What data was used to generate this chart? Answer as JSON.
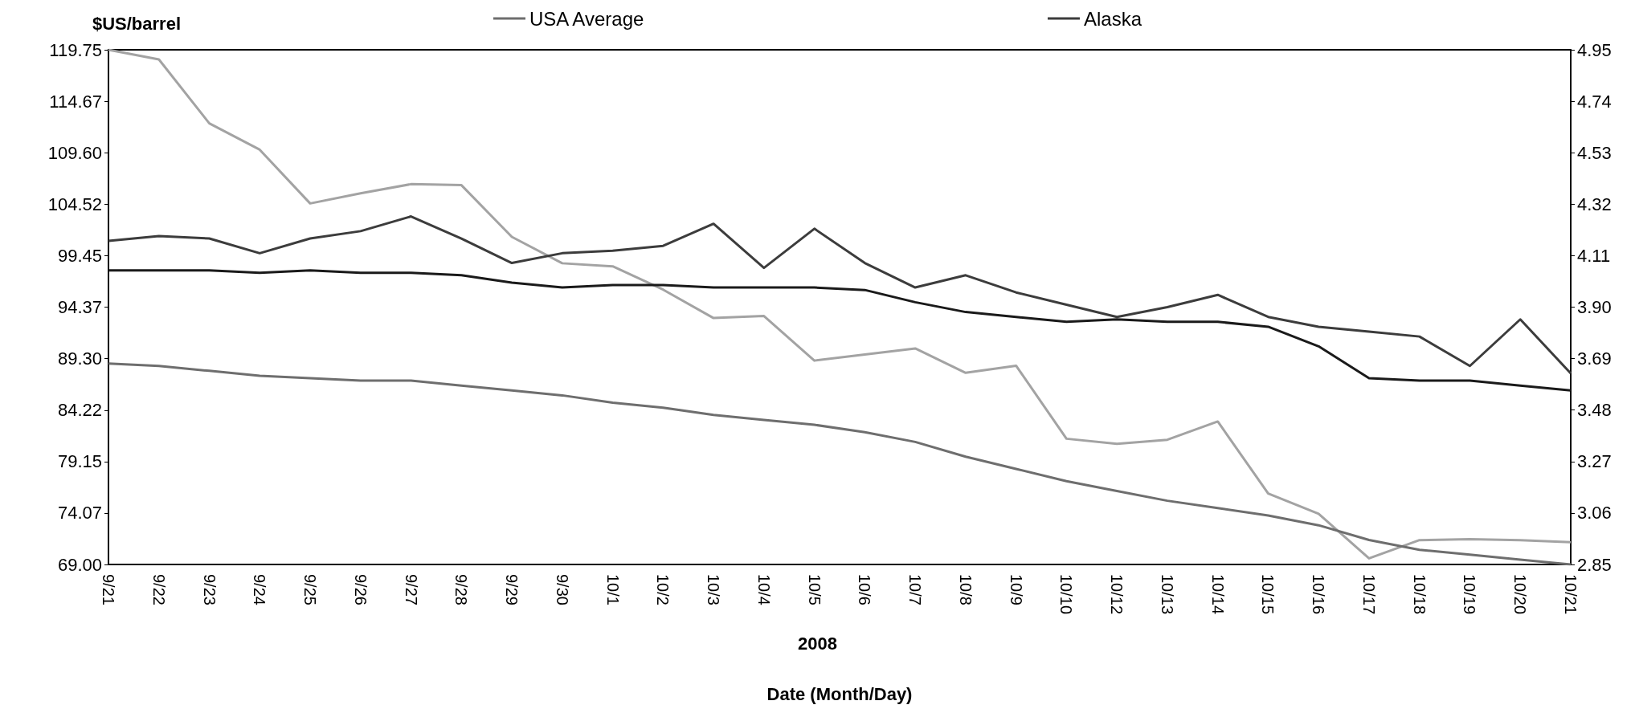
{
  "chart_data": {
    "type": "line",
    "ylabel": "$US/barrel",
    "xlabel": "Date (Month/Day)",
    "annotations": [
      "2008"
    ],
    "categories": [
      "9/21",
      "9/22",
      "9/23",
      "9/24",
      "9/25",
      "9/26",
      "9/27",
      "9/28",
      "9/29",
      "9/30",
      "10/1",
      "10/2",
      "10/3",
      "10/4",
      "10/5",
      "10/6",
      "10/7",
      "10/8",
      "10/9",
      "10/10",
      "10/12",
      "10/13",
      "10/14",
      "10/15",
      "10/16",
      "10/17",
      "10/18",
      "10/19",
      "10/20",
      "10/21"
    ],
    "series": [
      {
        "color": "#a3a3a3",
        "values": [
          119.75,
          118.8,
          112.5,
          109.9,
          104.6,
          105.6,
          106.5,
          106.4,
          101.3,
          98.7,
          98.4,
          96.1,
          93.3,
          93.5,
          89.1,
          89.7,
          90.3,
          87.9,
          88.6,
          81.4,
          80.9,
          81.3,
          83.1,
          76.0,
          74.0,
          69.6,
          71.4,
          71.5,
          71.4,
          71.2
        ]
      },
      {
        "name": "USA Average",
        "color": "#6e6e6e",
        "axis": "y2",
        "values": [
          3.67,
          3.66,
          3.64,
          3.62,
          3.61,
          3.6,
          3.6,
          3.58,
          3.56,
          3.54,
          3.51,
          3.49,
          3.46,
          3.44,
          3.42,
          3.39,
          3.35,
          3.29,
          3.24,
          3.19,
          3.15,
          3.11,
          3.08,
          3.05,
          3.01,
          2.95,
          2.91,
          2.89,
          2.87,
          2.85
        ]
      },
      {
        "name": "Alaska",
        "color": "#3c3c3c",
        "axis": "y2",
        "values": [
          4.17,
          4.19,
          4.18,
          4.12,
          4.18,
          4.21,
          4.27,
          4.18,
          4.08,
          4.12,
          4.13,
          4.15,
          4.24,
          4.06,
          4.22,
          4.08,
          3.98,
          4.03,
          3.96,
          3.91,
          3.86,
          3.9,
          3.95,
          3.86,
          3.82,
          3.8,
          3.78,
          3.66,
          3.85,
          3.63
        ]
      },
      {
        "color": "#1a1a1a",
        "axis": "y2",
        "values": [
          4.05,
          4.05,
          4.05,
          4.04,
          4.05,
          4.04,
          4.04,
          4.03,
          4.0,
          3.98,
          3.99,
          3.99,
          3.98,
          3.98,
          3.98,
          3.97,
          3.92,
          3.88,
          3.86,
          3.84,
          3.85,
          3.84,
          3.84,
          3.82,
          3.74,
          3.61,
          3.6,
          3.6,
          3.58,
          3.56
        ]
      }
    ],
    "ylim": [
      69,
      119.75
    ],
    "yticks": [
      {
        "value": 69,
        "label": "69.00"
      },
      74.07,
      79.15,
      84.22,
      {
        "value": 89.3,
        "label": "89.30"
      },
      94.37,
      99.45,
      104.52,
      {
        "value": 109.6,
        "label": "109.60"
      },
      114.67,
      119.75
    ],
    "y2lim": [
      2.85,
      4.95
    ],
    "y2ticks": [
      2.85,
      3.06,
      3.27,
      3.48,
      3.69,
      {
        "value": 3.9,
        "label": "3.90"
      },
      4.11,
      4.32,
      4.53,
      4.74,
      4.95
    ],
    "grid": false,
    "legend": "top",
    "marker": "none",
    "line_style": "solid"
  }
}
